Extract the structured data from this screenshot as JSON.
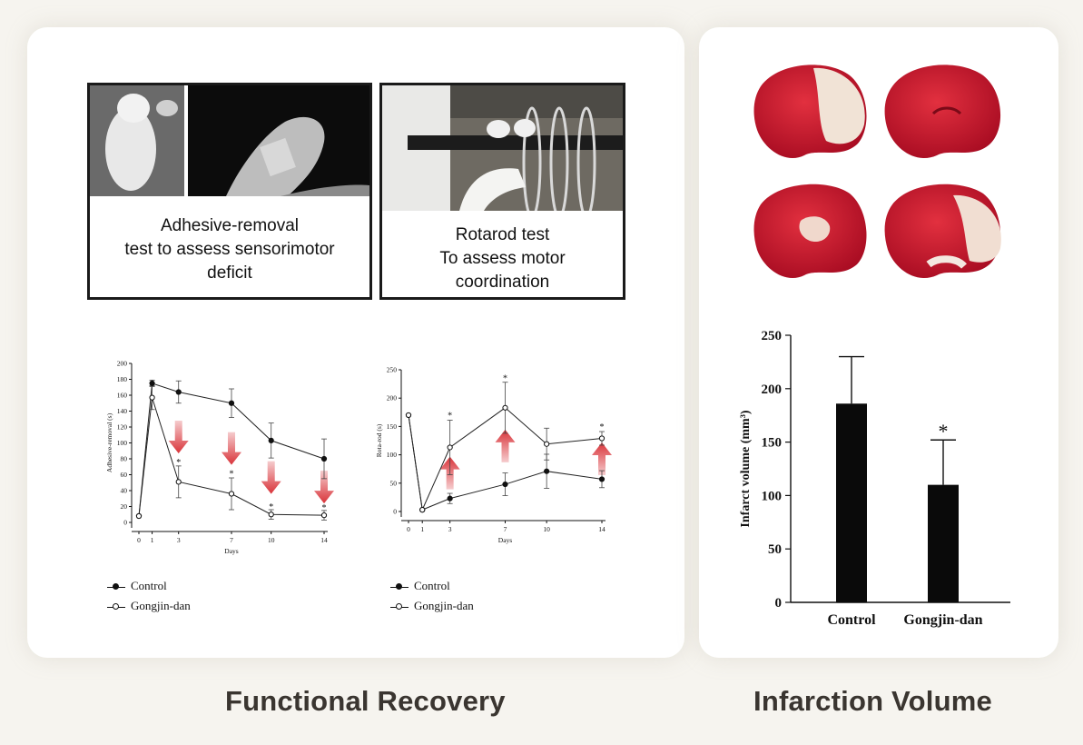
{
  "captions": {
    "left": "Functional Recovery",
    "right": "Infarction Volume"
  },
  "photos": {
    "adhesive_text": [
      "Adhesive-removal",
      "test to assess sensorimotor",
      "deficit"
    ],
    "rotarod_text": [
      "Rotarod test",
      "To assess motor",
      "coordination"
    ]
  },
  "legend": {
    "control": "Control",
    "treated": "Gongjin-dan"
  },
  "colors": {
    "arrow": "#d9343a",
    "bar": "#0a0a0a",
    "tissue": "#c8102e"
  },
  "chart_data": [
    {
      "type": "line",
      "title": "",
      "xlabel": "Days",
      "ylabel": "Adhesive-removal (s)",
      "x": [
        0,
        1,
        3,
        7,
        10,
        14
      ],
      "xticks": [
        "0",
        "1",
        "3",
        "7",
        "10",
        "14"
      ],
      "ylim": [
        0,
        200
      ],
      "yticks": [
        "0",
        "20",
        "40",
        "60",
        "80",
        "100",
        "120",
        "140",
        "160",
        "180",
        "200"
      ],
      "series": [
        {
          "name": "Control",
          "marker": "filled",
          "values": [
            8,
            175,
            164,
            150,
            103,
            80
          ],
          "errors": [
            0,
            4,
            14,
            18,
            22,
            25
          ]
        },
        {
          "name": "Gongjin-dan",
          "marker": "open",
          "values": [
            8,
            157,
            51,
            36,
            10,
            9
          ],
          "errors": [
            0,
            15,
            20,
            20,
            6,
            6
          ]
        }
      ],
      "significance": [
        {
          "x": 3,
          "y": 72,
          "label": "*"
        },
        {
          "x": 7,
          "y": 58,
          "label": "*"
        },
        {
          "x": 10,
          "y": 16,
          "label": "*"
        },
        {
          "x": 14,
          "y": 15,
          "label": "*"
        }
      ],
      "arrows": {
        "direction": "down",
        "x": [
          3,
          7,
          10,
          14
        ]
      }
    },
    {
      "type": "line",
      "title": "",
      "xlabel": "Days",
      "ylabel": "Rota-rod (s)",
      "x": [
        0,
        1,
        3,
        7,
        10,
        14
      ],
      "xticks": [
        "0",
        "1",
        "3",
        "7",
        "10",
        "14"
      ],
      "ylim": [
        0,
        250
      ],
      "yticks": [
        "0",
        "50",
        "100",
        "150",
        "200",
        "250"
      ],
      "series": [
        {
          "name": "Control",
          "marker": "filled",
          "values": [
            170,
            3,
            23,
            48,
            71,
            57
          ],
          "errors": [
            0,
            0,
            9,
            20,
            30,
            15
          ]
        },
        {
          "name": "Gongjin-dan",
          "marker": "open",
          "values": [
            170,
            3,
            113,
            183,
            119,
            129
          ],
          "errors": [
            0,
            0,
            48,
            45,
            28,
            12
          ]
        }
      ],
      "significance": [
        {
          "x": 3,
          "y": 164,
          "label": "*"
        },
        {
          "x": 7,
          "y": 230,
          "label": "*"
        },
        {
          "x": 14,
          "y": 144,
          "label": "*"
        }
      ],
      "arrows": {
        "direction": "up",
        "x": [
          3,
          7,
          14
        ]
      }
    },
    {
      "type": "bar",
      "title": "",
      "xlabel": "",
      "ylabel": "Infarct volume (mm³)",
      "categories": [
        "Control",
        "Gongjin-dan"
      ],
      "values": [
        186,
        110
      ],
      "errors": [
        44,
        42
      ],
      "ylim": [
        0,
        250
      ],
      "yticks": [
        "0",
        "50",
        "100",
        "150",
        "200",
        "250"
      ],
      "significance": [
        {
          "category": "Gongjin-dan",
          "label": "*"
        }
      ]
    }
  ]
}
